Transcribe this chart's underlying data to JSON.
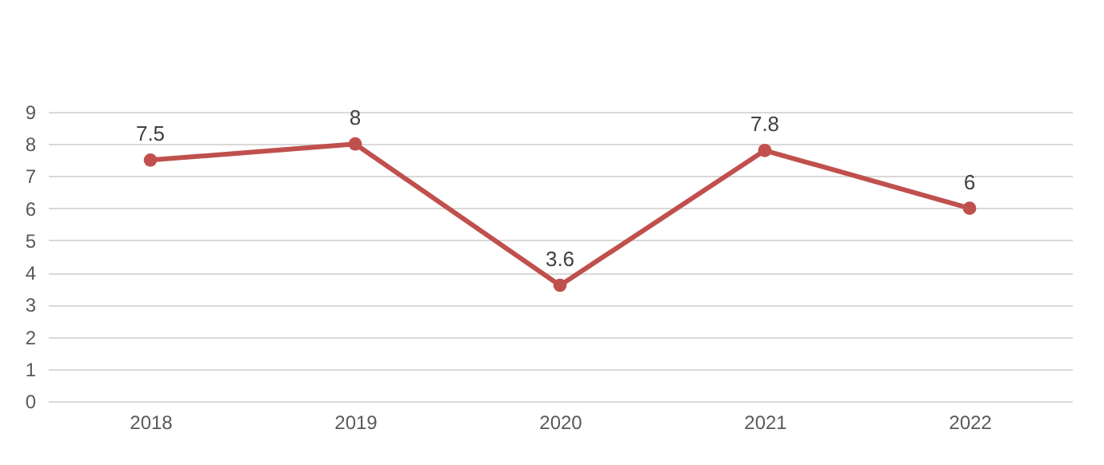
{
  "chart_data": {
    "type": "line",
    "categories": [
      "2018",
      "2019",
      "2020",
      "2021",
      "2022"
    ],
    "series": [
      {
        "color": "#c0504d",
        "values": [
          7.5,
          8,
          3.6,
          7.8,
          6
        ]
      }
    ],
    "ylim": [
      0,
      9
    ],
    "yticks": [
      0,
      1,
      2,
      3,
      4,
      5,
      6,
      7,
      8,
      9
    ],
    "grid": "y",
    "marker": "circle",
    "line_style": "solid",
    "data_labels": true,
    "legend": false
  }
}
